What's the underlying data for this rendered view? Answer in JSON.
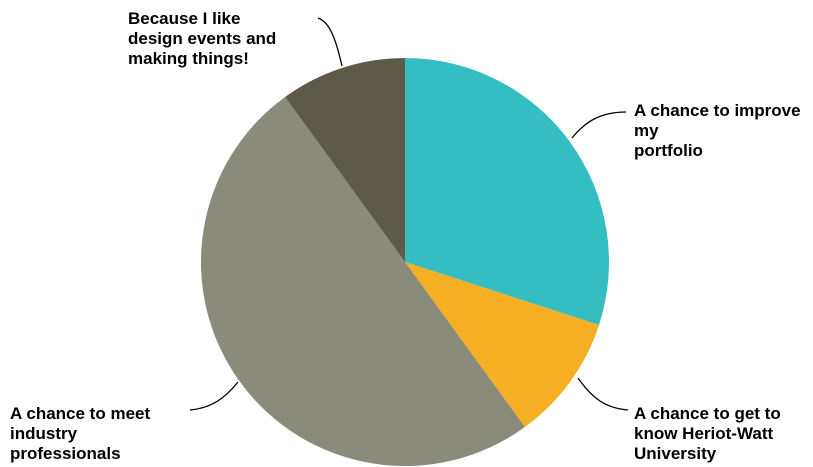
{
  "chart_data": {
    "type": "pie",
    "title": "",
    "slices": [
      {
        "label": "A chance to improve my\nportfolio",
        "value": 30,
        "color": "#35BEC1"
      },
      {
        "label": "A chance to get to\nknow Heriot-Watt\nUniversity",
        "value": 10,
        "color": "#F6AE22"
      },
      {
        "label": "A chance to meet\nindustry\nprofessionals",
        "value": 50,
        "color": "#8A8B7A"
      },
      {
        "label": "Because I like\ndesign events and\nmaking things!",
        "value": 10,
        "color": "#5D5A49"
      }
    ]
  }
}
